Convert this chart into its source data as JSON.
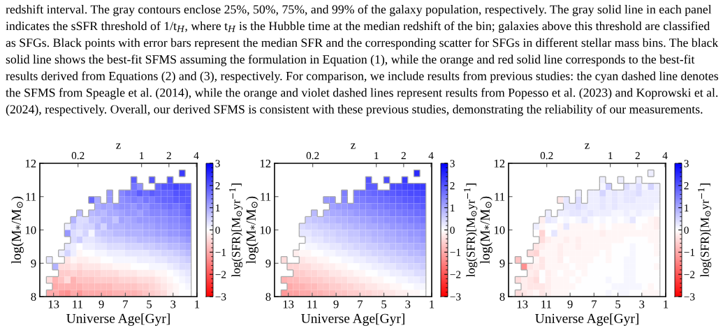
{
  "chart_data": [
    {
      "type": "heatmap",
      "annotations": [
        "redshift interval. The gray contours enclose 25%, 50%, 75%, and 99% of the galaxy population, respectively. The gray solid line in each panel",
        "indicates the sSFR threshold of 1/t$_{H}$, where t$_{H}$ is the Hubble time at the median redshift of the bin; galaxies above this threshold are classified",
        "as SFGs. Black points with error bars represent the median SFR and the corresponding scatter for SFGs in different stellar mass bins. The black",
        "solid line shows the best-fit SFMS assuming the formulation in Equation (1), while the orange and red solid line corresponds to the best-fit",
        "results derived from Equations (2) and (3), respectively. For comparison, we include results from previous studies: the cyan dashed line denotes",
        "the SFMS from Speagle et al. (2014), while the orange and violet dashed lines represent results from Popesso et al. (2023) and Koprowski et al.",
        "(2024), respectively. Overall, our derived SFMS is consistent with these previous studies, demonstrating the reliability of our measurements."
      ],
      "xlabel": "Universe Age[Gyr]",
      "ylabel": "log(M$_{*}$/M$_{⊙}$)",
      "x2label": "z",
      "clabel": "log(SFR)[M$_{⊙}$yr$^{−1}$]",
      "x": [
        13.35,
        12.845,
        12.34,
        11.835,
        11.33,
        10.825,
        10.32,
        9.815,
        9.31,
        8.805,
        8.3,
        7.795,
        7.29,
        6.785,
        6.28,
        5.775,
        5.27,
        4.765,
        4.26,
        3.755,
        3.25,
        2.745,
        2.24,
        1.735
      ],
      "y": [
        11.7,
        11.5,
        11.3,
        11.1,
        10.9,
        10.7,
        10.5,
        10.3,
        10.1,
        9.9,
        9.7,
        9.5,
        9.3,
        9.1,
        8.9,
        8.7,
        8.5,
        8.3,
        8.1
      ],
      "cells": [
        [
          null,
          null,
          null,
          null,
          null,
          null,
          null,
          null,
          null,
          null,
          null,
          null,
          null,
          null,
          null,
          null,
          null,
          null,
          null,
          null,
          null,
          null,
          2.3,
          null
        ],
        [
          null,
          null,
          null,
          null,
          null,
          null,
          null,
          null,
          null,
          null,
          null,
          null,
          null,
          null,
          1.9,
          null,
          null,
          2.0,
          null,
          null,
          2.0,
          null,
          null,
          null
        ],
        [
          null,
          null,
          null,
          null,
          null,
          null,
          null,
          null,
          null,
          null,
          null,
          null,
          null,
          null,
          1.6,
          1.3,
          null,
          null,
          1.8,
          2.0,
          2.0,
          2.2,
          2.0,
          2.0
        ],
        [
          null,
          null,
          null,
          null,
          null,
          null,
          null,
          null,
          null,
          null,
          1.2,
          null,
          1.4,
          1.6,
          1.6,
          1.9,
          1.7,
          1.9,
          1.8,
          1.8,
          1.8,
          2.0,
          2.0,
          1.9
        ],
        [
          null,
          null,
          null,
          null,
          null,
          null,
          null,
          1.8,
          1.0,
          null,
          1.2,
          null,
          1.3,
          1.4,
          1.5,
          1.4,
          1.6,
          1.5,
          1.7,
          1.8,
          1.8,
          1.9,
          1.9,
          1.9
        ],
        [
          null,
          null,
          null,
          null,
          null,
          null,
          null,
          null,
          1.0,
          1.1,
          1.0,
          1.2,
          1.3,
          1.3,
          1.2,
          1.4,
          1.3,
          1.5,
          1.5,
          1.6,
          1.7,
          1.6,
          1.7,
          1.9
        ],
        [
          null,
          null,
          null,
          null,
          null,
          0.8,
          null,
          0.8,
          0.9,
          0.8,
          1.0,
          1.0,
          1.1,
          1.2,
          1.2,
          1.1,
          1.3,
          1.4,
          1.4,
          1.4,
          1.5,
          1.5,
          1.6,
          1.8
        ],
        [
          null,
          null,
          null,
          null,
          0.9,
          0.4,
          0.4,
          0.7,
          0.7,
          0.9,
          0.9,
          0.7,
          1.1,
          1.0,
          1.1,
          1.2,
          1.2,
          1.2,
          1.3,
          1.3,
          1.4,
          1.4,
          1.5,
          1.6
        ],
        [
          null,
          null,
          null,
          0.2,
          0.6,
          0.4,
          0.5,
          0.5,
          0.8,
          0.5,
          0.9,
          0.9,
          0.9,
          1.0,
          1.0,
          1.0,
          1.1,
          1.1,
          1.2,
          1.2,
          1.3,
          1.3,
          1.4,
          1.5
        ],
        [
          null,
          null,
          null,
          1.2,
          0.4,
          0.3,
          0.5,
          0.1,
          0.6,
          0.7,
          0.7,
          0.8,
          0.8,
          0.9,
          0.9,
          0.9,
          1.0,
          1.0,
          1.1,
          1.1,
          1.2,
          1.2,
          1.3,
          1.4
        ],
        [
          null,
          null,
          null,
          null,
          0.4,
          0.6,
          0.3,
          0.3,
          0.4,
          0.5,
          0.6,
          0.6,
          0.6,
          0.7,
          0.7,
          0.8,
          0.8,
          0.8,
          0.9,
          0.9,
          1.0,
          1.0,
          1.1,
          1.2
        ],
        [
          null,
          null,
          null,
          0.3,
          0.2,
          0.0,
          0.2,
          0.2,
          0.3,
          0.3,
          0.4,
          0.4,
          0.4,
          0.5,
          0.5,
          0.5,
          0.6,
          0.6,
          0.7,
          0.7,
          0.8,
          0.8,
          0.9,
          1.0
        ],
        [
          null,
          null,
          0.2,
          0.5,
          0.2,
          -0.1,
          0.0,
          0.0,
          0.1,
          0.1,
          0.2,
          0.2,
          0.2,
          0.3,
          0.3,
          0.3,
          0.3,
          0.4,
          0.4,
          0.5,
          0.5,
          0.6,
          0.7,
          0.8
        ],
        [
          0.3,
          null,
          null,
          -0.3,
          -0.1,
          -0.2,
          -0.2,
          -0.1,
          -0.1,
          0.0,
          0.0,
          0.1,
          0.1,
          0.1,
          0.1,
          0.2,
          0.2,
          0.2,
          0.3,
          0.3,
          0.4,
          0.4,
          0.5,
          0.6
        ],
        [
          null,
          0.9,
          -0.4,
          -0.4,
          -0.3,
          -0.4,
          -0.3,
          -0.3,
          -0.3,
          -0.2,
          -0.2,
          -0.1,
          -0.1,
          -0.1,
          0.0,
          0.0,
          0.0,
          0.1,
          0.1,
          0.1,
          0.2,
          0.3,
          0.4,
          0.4
        ],
        [
          null,
          null,
          -0.6,
          -0.6,
          -0.5,
          -0.6,
          -0.5,
          -0.5,
          -0.5,
          -0.4,
          -0.4,
          -0.4,
          -0.3,
          -0.3,
          -0.3,
          -0.2,
          -0.2,
          -0.2,
          -0.1,
          -0.1,
          0.0,
          0.1,
          0.2,
          0.3
        ],
        [
          -0.4,
          -0.9,
          -0.7,
          -0.4,
          -0.9,
          -0.7,
          -0.7,
          -0.7,
          -0.6,
          -0.6,
          -0.6,
          -0.6,
          -0.5,
          -0.5,
          -0.5,
          -0.4,
          -0.4,
          -0.4,
          -0.3,
          -0.2,
          -0.1,
          0.0,
          0.1,
          0.2
        ],
        [
          null,
          -1.0,
          -0.9,
          -0.9,
          -0.9,
          -0.9,
          -0.8,
          -0.8,
          -0.8,
          -0.8,
          -0.8,
          -0.7,
          -0.7,
          -0.7,
          -0.7,
          -0.6,
          -0.6,
          -0.5,
          -0.4,
          -0.3,
          -0.2,
          -0.1,
          0.0,
          0.1
        ],
        [
          -1.0,
          -1.0,
          -1.2,
          -1.3,
          -1.0,
          -1.2,
          -1.0,
          -1.0,
          -1.0,
          -1.0,
          -1.0,
          -0.9,
          -0.9,
          -0.9,
          -0.9,
          -0.8,
          -0.7,
          -0.6,
          -0.5,
          -0.4,
          -0.2,
          -0.1,
          0.0,
          0.0
        ]
      ],
      "xlim": [
        14.15,
        1
      ],
      "xticks": [
        13,
        11,
        9,
        7,
        5,
        3,
        1
      ],
      "ylim": [
        8,
        12
      ],
      "yticks": [
        8,
        9,
        10,
        11,
        12
      ],
      "x2lim": [
        0.076,
        4.07
      ],
      "x2ticks": [
        0.2,
        1,
        2,
        4
      ],
      "log": "x2",
      "clim": [
        -3,
        3
      ],
      "cticks": [
        {
          "value": -3,
          "label": "−3"
        },
        {
          "value": -2,
          "label": "−2"
        },
        {
          "value": -1,
          "label": "−1"
        },
        0,
        1,
        2,
        3
      ],
      "colors": [
        "#ff0000",
        "#ffffff",
        "#0000ff"
      ]
    },
    {
      "type": "heatmap",
      "xlabel": "Universe Age[Gyr]",
      "ylabel": "log(M$_{*}$/M$_{⊙}$)",
      "x2label": "z",
      "clabel": "log(SFR)[M$_{⊙}$yr$^{−1}$]",
      "x": [
        13.35,
        12.845,
        12.34,
        11.835,
        11.33,
        10.825,
        10.32,
        9.815,
        9.31,
        8.805,
        8.3,
        7.795,
        7.29,
        6.785,
        6.28,
        5.775,
        5.27,
        4.765,
        4.26,
        3.755,
        3.25,
        2.745,
        2.24,
        1.735
      ],
      "y": [
        11.7,
        11.5,
        11.3,
        11.1,
        10.9,
        10.7,
        10.5,
        10.3,
        10.1,
        9.9,
        9.7,
        9.5,
        9.3,
        9.1,
        8.9,
        8.7,
        8.5,
        8.3,
        8.1
      ],
      "cells": [
        [
          null,
          null,
          null,
          null,
          null,
          null,
          null,
          null,
          null,
          null,
          null,
          null,
          null,
          null,
          null,
          null,
          null,
          null,
          null,
          null,
          null,
          null,
          2.5,
          null
        ],
        [
          null,
          null,
          null,
          null,
          null,
          null,
          null,
          null,
          null,
          null,
          null,
          null,
          null,
          null,
          2.0,
          null,
          null,
          2.1,
          null,
          null,
          2.3,
          null,
          null,
          null
        ],
        [
          null,
          null,
          null,
          null,
          null,
          null,
          null,
          null,
          null,
          null,
          null,
          null,
          null,
          null,
          1.9,
          1.9,
          null,
          null,
          2.1,
          2.1,
          2.2,
          2.2,
          2.3,
          2.3
        ],
        [
          null,
          null,
          null,
          null,
          null,
          null,
          null,
          null,
          null,
          null,
          1.5,
          null,
          1.6,
          1.7,
          1.7,
          1.8,
          1.8,
          1.9,
          1.9,
          2.0,
          2.0,
          2.1,
          2.1,
          2.2
        ],
        [
          null,
          null,
          null,
          null,
          null,
          null,
          null,
          1.2,
          1.3,
          null,
          1.4,
          null,
          1.5,
          1.5,
          1.6,
          1.6,
          1.7,
          1.7,
          1.8,
          1.8,
          1.9,
          1.9,
          2.0,
          2.0
        ],
        [
          null,
          null,
          null,
          null,
          null,
          null,
          null,
          null,
          1.1,
          1.2,
          1.2,
          1.3,
          1.3,
          1.4,
          1.4,
          1.5,
          1.5,
          1.6,
          1.6,
          1.7,
          1.7,
          1.8,
          1.8,
          1.9
        ],
        [
          null,
          null,
          null,
          null,
          null,
          0.8,
          null,
          0.9,
          1.0,
          1.0,
          1.1,
          1.1,
          1.2,
          1.2,
          1.3,
          1.3,
          1.4,
          1.4,
          1.5,
          1.5,
          1.6,
          1.6,
          1.7,
          1.7
        ],
        [
          null,
          null,
          null,
          null,
          0.6,
          0.7,
          0.7,
          0.8,
          0.8,
          0.9,
          0.9,
          1.0,
          1.0,
          1.1,
          1.1,
          1.2,
          1.2,
          1.3,
          1.3,
          1.4,
          1.4,
          1.5,
          1.5,
          1.6
        ],
        [
          null,
          null,
          null,
          0.4,
          0.5,
          0.5,
          0.6,
          0.6,
          0.7,
          0.7,
          0.8,
          0.8,
          0.9,
          0.9,
          1.0,
          1.0,
          1.1,
          1.1,
          1.2,
          1.2,
          1.3,
          1.3,
          1.4,
          1.4
        ],
        [
          null,
          null,
          null,
          0.3,
          0.3,
          0.4,
          0.4,
          0.5,
          0.5,
          0.6,
          0.6,
          0.7,
          0.7,
          0.8,
          0.8,
          0.9,
          0.9,
          1.0,
          1.0,
          1.1,
          1.1,
          1.2,
          1.2,
          1.3
        ],
        [
          null,
          null,
          null,
          null,
          0.2,
          0.3,
          0.3,
          0.4,
          0.4,
          0.5,
          0.5,
          0.6,
          0.6,
          0.7,
          0.7,
          0.8,
          0.8,
          0.9,
          0.9,
          1.0,
          1.0,
          1.1,
          1.1,
          1.2
        ],
        [
          null,
          null,
          null,
          0.0,
          0.1,
          0.1,
          0.2,
          0.2,
          0.3,
          0.3,
          0.4,
          0.4,
          0.5,
          0.5,
          0.6,
          0.6,
          0.7,
          0.7,
          0.8,
          0.8,
          0.9,
          0.9,
          1.0,
          1.0
        ],
        [
          null,
          null,
          -0.2,
          -0.1,
          -0.1,
          0.0,
          0.0,
          0.1,
          0.1,
          0.2,
          0.2,
          0.3,
          0.3,
          0.4,
          0.4,
          0.5,
          0.5,
          0.6,
          0.6,
          0.7,
          0.7,
          0.8,
          0.8,
          0.9
        ],
        [
          -0.4,
          null,
          null,
          -0.3,
          -0.2,
          -0.2,
          -0.1,
          -0.1,
          0.0,
          0.0,
          0.1,
          0.1,
          0.2,
          0.2,
          0.3,
          0.3,
          0.4,
          0.4,
          0.5,
          0.5,
          0.6,
          0.6,
          0.7,
          0.7
        ],
        [
          null,
          -0.5,
          -0.5,
          -0.4,
          -0.4,
          -0.3,
          -0.3,
          -0.2,
          -0.2,
          -0.1,
          -0.1,
          0.0,
          0.0,
          0.1,
          0.1,
          0.2,
          0.2,
          0.3,
          0.3,
          0.4,
          0.4,
          0.5,
          0.5,
          0.6
        ],
        [
          null,
          null,
          -0.6,
          -0.6,
          -0.5,
          -0.5,
          -0.4,
          -0.4,
          -0.3,
          -0.3,
          -0.2,
          -0.2,
          -0.1,
          -0.1,
          0.0,
          0.0,
          0.1,
          0.1,
          0.2,
          0.2,
          0.3,
          0.3,
          0.4,
          0.4
        ],
        [
          -0.9,
          -0.8,
          -0.8,
          -0.7,
          -0.7,
          -0.6,
          -0.6,
          -0.5,
          -0.5,
          -0.4,
          -0.4,
          -0.3,
          -0.3,
          -0.2,
          -0.2,
          -0.1,
          -0.1,
          0.0,
          0.0,
          0.1,
          0.1,
          0.2,
          0.2,
          0.3
        ],
        [
          null,
          -1.0,
          -0.9,
          -0.9,
          -0.8,
          -0.8,
          -0.7,
          -0.7,
          -0.6,
          -0.6,
          -0.5,
          -0.5,
          -0.4,
          -0.4,
          -0.3,
          -0.3,
          -0.2,
          -0.2,
          -0.1,
          -0.1,
          0.0,
          0.0,
          0.1,
          0.1
        ],
        [
          -1.2,
          -1.1,
          -1.1,
          -1.0,
          -1.0,
          -0.9,
          -0.9,
          -0.8,
          -0.8,
          -0.7,
          -0.7,
          -0.6,
          -0.6,
          -0.5,
          -0.5,
          -0.4,
          -0.4,
          -0.3,
          -0.3,
          -0.2,
          -0.2,
          -0.1,
          -0.1,
          0.0
        ]
      ],
      "xlim": [
        14.15,
        1
      ],
      "xticks": [
        13,
        11,
        9,
        7,
        5,
        3,
        1
      ],
      "ylim": [
        8,
        12
      ],
      "yticks": [
        8,
        9,
        10,
        11,
        12
      ],
      "x2lim": [
        0.076,
        4.07
      ],
      "x2ticks": [
        0.2,
        1,
        2,
        4
      ],
      "log": "x2",
      "clim": [
        -3,
        3
      ],
      "cticks": [
        {
          "value": -3,
          "label": "−3"
        },
        {
          "value": -2,
          "label": "−2"
        },
        {
          "value": -1,
          "label": "−1"
        },
        0,
        1,
        2,
        3
      ],
      "colors": [
        "#ff0000",
        "#ffffff",
        "#0000ff"
      ]
    },
    {
      "type": "heatmap",
      "xlabel": "Universe Age[Gyr]",
      "ylabel": "log(M$_{*}$/M$_{⊙}$)",
      "x2label": "z",
      "clabel": "log(SFR)[M$_{⊙}$yr$^{−1}$]",
      "x": [
        13.35,
        12.845,
        12.34,
        11.835,
        11.33,
        10.825,
        10.32,
        9.815,
        9.31,
        8.805,
        8.3,
        7.795,
        7.29,
        6.785,
        6.28,
        5.775,
        5.27,
        4.765,
        4.26,
        3.755,
        3.25,
        2.745,
        2.24,
        1.735
      ],
      "y": [
        11.7,
        11.5,
        11.3,
        11.1,
        10.9,
        10.7,
        10.5,
        10.3,
        10.1,
        9.9,
        9.7,
        9.5,
        9.3,
        9.1,
        8.9,
        8.7,
        8.5,
        8.3,
        8.1
      ],
      "cells": [
        [
          null,
          null,
          null,
          null,
          null,
          null,
          null,
          null,
          null,
          null,
          null,
          null,
          null,
          null,
          null,
          null,
          null,
          null,
          null,
          null,
          null,
          null,
          0.2,
          null
        ],
        [
          null,
          null,
          null,
          null,
          null,
          null,
          null,
          null,
          null,
          null,
          null,
          null,
          null,
          null,
          0.2,
          null,
          null,
          0.2,
          null,
          null,
          0.2,
          null,
          null,
          null
        ],
        [
          null,
          null,
          null,
          null,
          null,
          null,
          null,
          null,
          null,
          null,
          null,
          null,
          null,
          null,
          0.1,
          0.6,
          null,
          null,
          0.4,
          0.2,
          0.4,
          0.1,
          0.5,
          0.2
        ],
        [
          null,
          null,
          null,
          null,
          null,
          null,
          null,
          null,
          null,
          null,
          0.2,
          null,
          0.2,
          0.2,
          0.5,
          0.2,
          0.3,
          0.2,
          0.3,
          0.3,
          0.4,
          0.2,
          0.2,
          0.2
        ],
        [
          null,
          null,
          null,
          null,
          null,
          null,
          null,
          -0.3,
          0.3,
          null,
          0.4,
          null,
          0.2,
          0.2,
          0.3,
          0.2,
          0.3,
          0.2,
          0.3,
          0.3,
          0.2,
          0.2,
          0.2,
          0.2
        ],
        [
          null,
          null,
          null,
          null,
          null,
          null,
          null,
          null,
          0.3,
          0.3,
          0.4,
          0.3,
          0.2,
          0.2,
          0.3,
          0.2,
          0.3,
          0.2,
          0.2,
          0.2,
          0.2,
          0.2,
          0.2,
          0.1
        ],
        [
          null,
          null,
          null,
          null,
          null,
          0.2,
          null,
          0.2,
          0.2,
          0.3,
          0.3,
          0.2,
          0.3,
          0.2,
          0.2,
          0.2,
          0.1,
          0.1,
          0.2,
          0.1,
          0.2,
          0.1,
          0.1,
          0.0
        ],
        [
          null,
          null,
          null,
          null,
          -0.2,
          0.3,
          0.2,
          0.0,
          0.1,
          0.0,
          0.1,
          0.3,
          0.1,
          0.0,
          0.1,
          0.0,
          0.1,
          0.0,
          0.1,
          0.3,
          0.0,
          0.0,
          -0.1,
          -0.2
        ],
        [
          null,
          null,
          null,
          0.2,
          -0.1,
          0.0,
          0.0,
          -0.1,
          0.3,
          -0.1,
          -0.1,
          -0.1,
          -0.1,
          0.0,
          -0.1,
          0.0,
          -0.1,
          -0.1,
          -0.1,
          -0.1,
          0.0,
          -0.1,
          -0.1,
          -0.2
        ],
        [
          null,
          null,
          null,
          0.0,
          -0.5,
          0.0,
          0.3,
          -0.1,
          -0.1,
          -0.1,
          -0.1,
          -0.1,
          -0.1,
          -0.1,
          -0.2,
          -0.1,
          -0.1,
          -0.1,
          -0.1,
          -0.1,
          -0.1,
          -0.1,
          -0.1,
          -0.1
        ],
        [
          null,
          null,
          null,
          null,
          -0.4,
          -0.2,
          -0.1,
          -0.1,
          -0.2,
          -0.1,
          -0.2,
          -0.1,
          -0.1,
          -0.1,
          -0.1,
          -0.1,
          -0.1,
          -0.1,
          0.0,
          0.0,
          0.0,
          0.0,
          -0.1,
          -0.1
        ],
        [
          null,
          null,
          null,
          -0.3,
          -0.2,
          -0.1,
          -0.1,
          -0.2,
          -0.1,
          -0.1,
          -0.2,
          -0.1,
          -0.1,
          -0.1,
          -0.1,
          -0.1,
          0.0,
          0.0,
          0.0,
          0.1,
          0.0,
          0.0,
          0.0,
          -0.1
        ],
        [
          null,
          null,
          -0.4,
          -0.5,
          -0.1,
          -0.1,
          -0.1,
          -0.2,
          -0.1,
          -0.1,
          -0.1,
          -0.1,
          -0.1,
          -0.1,
          0.0,
          -0.1,
          0.0,
          0.0,
          0.0,
          0.1,
          0.0,
          0.0,
          0.0,
          -0.1
        ],
        [
          -0.7,
          null,
          null,
          -0.1,
          -0.3,
          -0.1,
          -0.1,
          -0.2,
          0.0,
          -0.1,
          -0.1,
          -0.1,
          -0.1,
          0.0,
          0.0,
          -0.1,
          0.0,
          0.0,
          0.1,
          0.1,
          0.0,
          0.0,
          0.0,
          0.0
        ],
        [
          null,
          -1.3,
          -0.3,
          -0.2,
          -0.3,
          -0.1,
          -0.1,
          -0.1,
          -0.1,
          0.0,
          -0.1,
          -0.1,
          0.0,
          0.0,
          0.0,
          0.0,
          0.0,
          0.0,
          0.1,
          0.1,
          0.0,
          0.0,
          0.0,
          -0.1
        ],
        [
          null,
          null,
          -0.2,
          -0.3,
          0.0,
          -0.2,
          -0.1,
          0.0,
          -0.1,
          -0.1,
          0.0,
          -0.1,
          0.0,
          0.0,
          0.0,
          0.0,
          0.0,
          0.0,
          0.1,
          0.1,
          0.0,
          0.0,
          0.0,
          0.0
        ],
        [
          -0.4,
          -0.2,
          -0.3,
          -0.4,
          0.0,
          -0.2,
          -0.1,
          -0.1,
          -0.1,
          0.0,
          -0.1,
          0.0,
          0.0,
          0.0,
          0.0,
          0.1,
          0.0,
          0.0,
          0.1,
          0.1,
          0.0,
          0.0,
          0.0,
          0.0
        ],
        [
          null,
          -0.2,
          -0.3,
          -0.3,
          -0.3,
          -0.2,
          -0.1,
          -0.1,
          -0.1,
          -0.1,
          0.0,
          0.0,
          0.0,
          0.0,
          0.0,
          0.0,
          0.1,
          0.1,
          0.1,
          0.1,
          0.1,
          0.0,
          -0.1,
          0.0
        ],
        [
          -0.4,
          -0.3,
          -0.2,
          -0.1,
          -0.3,
          -0.2,
          -0.1,
          -0.1,
          -0.1,
          0.0,
          0.0,
          0.0,
          0.0,
          0.0,
          0.0,
          0.1,
          0.0,
          0.1,
          0.1,
          0.0,
          0.0,
          -0.1,
          -0.1,
          -0.1
        ]
      ],
      "xlim": [
        14.15,
        1
      ],
      "xticks": [
        13,
        11,
        9,
        7,
        5,
        3,
        1
      ],
      "ylim": [
        8,
        12
      ],
      "yticks": [
        8,
        9,
        10,
        11,
        12
      ],
      "x2lim": [
        0.076,
        4.07
      ],
      "x2ticks": [
        0.2,
        1,
        2,
        4
      ],
      "log": "x2",
      "clim": [
        -3,
        3
      ],
      "cticks": [
        {
          "value": -3,
          "label": "−3"
        },
        {
          "value": -2,
          "label": "−2"
        },
        {
          "value": -1,
          "label": "−1"
        },
        0,
        1,
        2,
        3
      ],
      "colors": [
        "#ff0000",
        "#ffffff",
        "#0000ff"
      ]
    }
  ]
}
